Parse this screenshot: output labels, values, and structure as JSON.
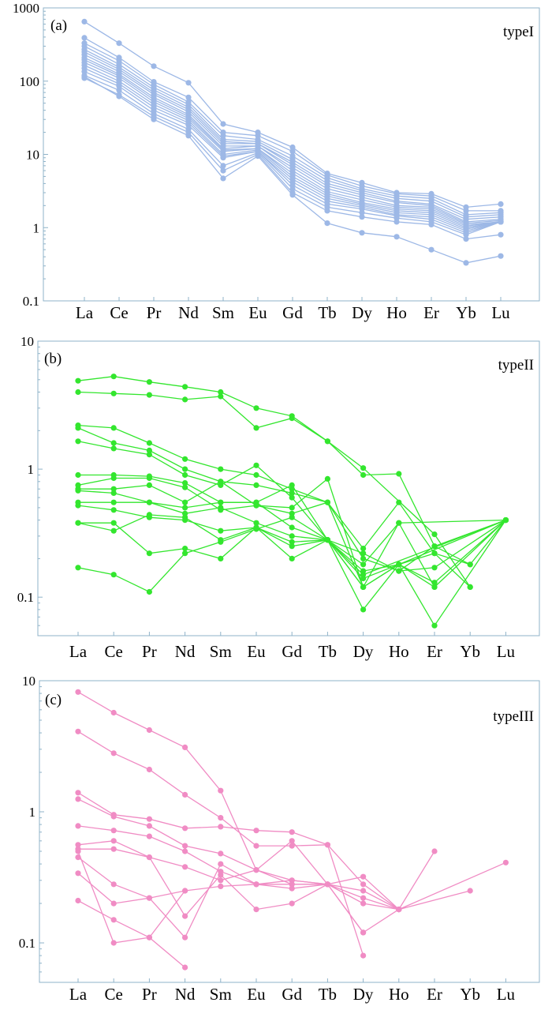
{
  "chart_data": [
    {
      "type": "line",
      "panel_label": "(a)",
      "annotation": "typeI",
      "yscale": "log",
      "ylim": [
        0.1,
        1000
      ],
      "y_ticks": [
        "0.1",
        "1",
        "10",
        "100",
        "1000"
      ],
      "categories": [
        "La",
        "Ce",
        "Pr",
        "Nd",
        "Sm",
        "Eu",
        "Gd",
        "Tb",
        "Dy",
        "Ho",
        "Er",
        "Yb",
        "Lu"
      ],
      "color": "#9db8e6",
      "grid": false,
      "series": [
        {
          "values": [
            650,
            330,
            160,
            95,
            26,
            20,
            12.5,
            5.5,
            4.1,
            3.0,
            2.9,
            1.9,
            2.1
          ]
        },
        {
          "values": [
            390,
            210,
            98,
            60,
            20,
            18,
            11.0,
            5.2,
            3.7,
            2.9,
            2.7,
            1.7,
            1.7
          ]
        },
        {
          "values": [
            330,
            190,
            90,
            52,
            18,
            16,
            9.5,
            4.8,
            3.4,
            2.7,
            2.5,
            1.5,
            1.6
          ]
        },
        {
          "values": [
            300,
            170,
            82,
            48,
            16,
            15,
            8.5,
            4.4,
            3.2,
            2.5,
            2.3,
            1.4,
            1.5
          ]
        },
        {
          "values": [
            270,
            155,
            76,
            44,
            15,
            14,
            7.8,
            4.0,
            3.0,
            2.3,
            2.1,
            1.3,
            1.4
          ]
        },
        {
          "values": [
            250,
            145,
            70,
            41,
            14,
            14,
            7.2,
            3.7,
            2.8,
            2.2,
            2.0,
            1.2,
            1.3
          ]
        },
        {
          "values": [
            230,
            135,
            66,
            38,
            13,
            13,
            6.6,
            3.4,
            2.6,
            2.0,
            1.9,
            1.15,
            1.25
          ]
        },
        {
          "values": [
            210,
            125,
            60,
            35,
            12,
            13,
            6.0,
            3.1,
            2.4,
            1.9,
            1.8,
            1.1,
            1.2
          ]
        },
        {
          "values": [
            195,
            118,
            56,
            33,
            11.5,
            12,
            5.5,
            2.9,
            2.2,
            1.8,
            1.7,
            1.05,
            1.2
          ]
        },
        {
          "values": [
            180,
            110,
            52,
            31,
            11,
            12,
            5.0,
            2.7,
            2.1,
            1.7,
            1.6,
            1.0,
            1.2
          ]
        },
        {
          "values": [
            165,
            100,
            48,
            29,
            10,
            11.5,
            4.6,
            2.5,
            2.0,
            1.6,
            1.5,
            0.95,
            1.2
          ]
        },
        {
          "values": [
            150,
            92,
            44,
            27,
            9.5,
            11,
            4.2,
            2.3,
            1.9,
            1.5,
            1.4,
            0.9,
            1.2
          ]
        },
        {
          "values": [
            135,
            85,
            40,
            25,
            9,
            11,
            3.8,
            2.1,
            1.8,
            1.45,
            1.3,
            0.85,
            1.2
          ]
        },
        {
          "values": [
            120,
            75,
            36,
            22,
            7,
            10.5,
            3.4,
            1.9,
            1.6,
            1.35,
            1.2,
            0.8,
            1.2
          ]
        },
        {
          "values": [
            110,
            65,
            33,
            20,
            6,
            10,
            3.0,
            1.7,
            1.4,
            1.2,
            1.1,
            0.7,
            0.8
          ]
        },
        {
          "values": [
            115,
            62,
            30,
            18,
            4.7,
            9.5,
            2.8,
            1.15,
            0.85,
            0.75,
            0.5,
            0.33,
            0.41
          ]
        }
      ]
    },
    {
      "type": "line",
      "panel_label": "(b)",
      "annotation": "typeII",
      "yscale": "log",
      "ylim": [
        0.05,
        10
      ],
      "y_ticks": [
        "0.1",
        "1",
        "10"
      ],
      "categories": [
        "La",
        "Ce",
        "Pr",
        "Nd",
        "Sm",
        "Eu",
        "Gd",
        "Tb",
        "Dy",
        "Ho",
        "Er",
        "Yb",
        "Lu"
      ],
      "color": "#33e62e",
      "grid": false,
      "series": [
        {
          "values": [
            4.9,
            5.3,
            4.8,
            4.4,
            4.0,
            3.0,
            2.6,
            1.65,
            1.02,
            null,
            0.31,
            0.12,
            null
          ]
        },
        {
          "values": [
            4.0,
            3.9,
            3.8,
            3.5,
            3.7,
            2.1,
            2.5,
            1.65,
            0.9,
            0.92,
            0.25,
            null,
            0.4
          ]
        },
        {
          "values": [
            2.2,
            2.1,
            1.6,
            1.2,
            1.0,
            0.9,
            0.7,
            0.55,
            0.24,
            0.55,
            0.22,
            0.18,
            0.4
          ]
        },
        {
          "values": [
            2.1,
            1.6,
            1.4,
            1.0,
            0.8,
            0.75,
            0.65,
            0.55,
            0.12,
            0.38,
            0.12,
            null,
            0.4
          ]
        },
        {
          "values": [
            1.65,
            1.45,
            1.3,
            0.9,
            0.75,
            1.07,
            0.6,
            0.28,
            0.16,
            0.18,
            0.06,
            null,
            0.4
          ]
        },
        {
          "values": [
            0.9,
            0.9,
            0.88,
            0.78,
            0.55,
            0.55,
            0.75,
            0.28,
            0.22,
            0.16,
            0.25,
            0.18,
            null
          ]
        },
        {
          "values": [
            0.75,
            0.85,
            0.85,
            0.72,
            0.48,
            0.52,
            0.5,
            0.84,
            0.12,
            0.18,
            0.22,
            0.12,
            null
          ]
        },
        {
          "values": [
            0.7,
            0.7,
            0.75,
            0.55,
            0.8,
            0.52,
            0.45,
            0.55,
            0.2,
            0.16,
            0.17,
            null,
            0.4
          ]
        },
        {
          "values": [
            0.68,
            0.65,
            0.55,
            0.5,
            0.55,
            0.55,
            0.35,
            0.28,
            0.08,
            0.18,
            null,
            null,
            0.4
          ]
        },
        {
          "values": [
            0.55,
            0.55,
            0.55,
            0.45,
            0.5,
            0.38,
            0.3,
            0.28,
            0.18,
            0.38,
            null,
            null,
            0.4
          ]
        },
        {
          "values": [
            0.52,
            0.48,
            0.42,
            0.4,
            0.33,
            0.35,
            0.25,
            0.28,
            0.15,
            null,
            null,
            null,
            0.4
          ]
        },
        {
          "values": [
            0.38,
            0.33,
            0.44,
            0.42,
            0.28,
            0.35,
            0.27,
            0.28,
            0.12,
            0.18,
            0.12,
            null,
            null
          ]
        },
        {
          "values": [
            0.38,
            0.38,
            0.22,
            0.24,
            0.2,
            0.35,
            0.2,
            0.28,
            0.14,
            0.18,
            0.13,
            null,
            0.4
          ]
        },
        {
          "values": [
            0.17,
            0.15,
            0.11,
            0.22,
            0.27,
            0.34,
            0.42,
            0.28,
            0.12,
            null,
            null,
            null,
            null
          ]
        }
      ]
    },
    {
      "type": "line",
      "panel_label": "(c)",
      "annotation": "typeIII",
      "yscale": "log",
      "ylim": [
        0.05,
        10
      ],
      "y_ticks": [
        "0.1",
        "1",
        "10"
      ],
      "categories": [
        "La",
        "Ce",
        "Pr",
        "Nd",
        "Sm",
        "Eu",
        "Gd",
        "Tb",
        "Dy",
        "Ho",
        "Er",
        "Yb",
        "Lu"
      ],
      "color": "#f08cc4",
      "grid": false,
      "series": [
        {
          "values": [
            8.2,
            5.7,
            4.2,
            3.1,
            1.45,
            0.36,
            0.3,
            0.28,
            0.12,
            0.18,
            null,
            null,
            null
          ]
        },
        {
          "values": [
            4.1,
            2.8,
            2.1,
            1.35,
            0.9,
            0.55,
            0.55,
            0.56,
            0.28,
            0.18,
            null,
            null,
            null
          ]
        },
        {
          "values": [
            1.4,
            0.95,
            0.88,
            0.75,
            0.77,
            0.72,
            0.7,
            0.56,
            0.08,
            null,
            null,
            null,
            null
          ]
        },
        {
          "values": [
            1.25,
            0.92,
            0.78,
            0.55,
            0.48,
            0.36,
            0.6,
            0.28,
            0.32,
            0.18,
            null,
            null,
            null
          ]
        },
        {
          "values": [
            0.78,
            0.72,
            0.65,
            0.5,
            0.35,
            0.28,
            0.3,
            0.28,
            0.25,
            0.18,
            0.5,
            null,
            null
          ]
        },
        {
          "values": [
            0.56,
            0.6,
            0.45,
            0.38,
            0.3,
            0.36,
            0.28,
            0.28,
            0.22,
            0.18,
            null,
            0.25,
            null
          ]
        },
        {
          "values": [
            0.52,
            0.52,
            0.45,
            0.16,
            0.33,
            0.18,
            0.2,
            0.28,
            0.2,
            0.18,
            null,
            null,
            0.41
          ]
        },
        {
          "values": [
            0.45,
            0.28,
            0.22,
            0.25,
            0.27,
            0.28,
            0.26,
            0.28,
            0.12,
            null,
            null,
            null,
            null
          ]
        },
        {
          "values": [
            0.34,
            0.2,
            0.22,
            0.11,
            0.4,
            0.28,
            0.28,
            0.28,
            null,
            null,
            null,
            null,
            null
          ]
        },
        {
          "values": [
            0.21,
            0.15,
            0.11,
            0.065,
            null,
            null,
            null,
            null,
            null,
            null,
            null,
            null,
            null
          ]
        },
        {
          "values": [
            0.5,
            0.1,
            0.11,
            0.25,
            null,
            null,
            null,
            null,
            null,
            null,
            null,
            null,
            null
          ]
        }
      ]
    }
  ]
}
